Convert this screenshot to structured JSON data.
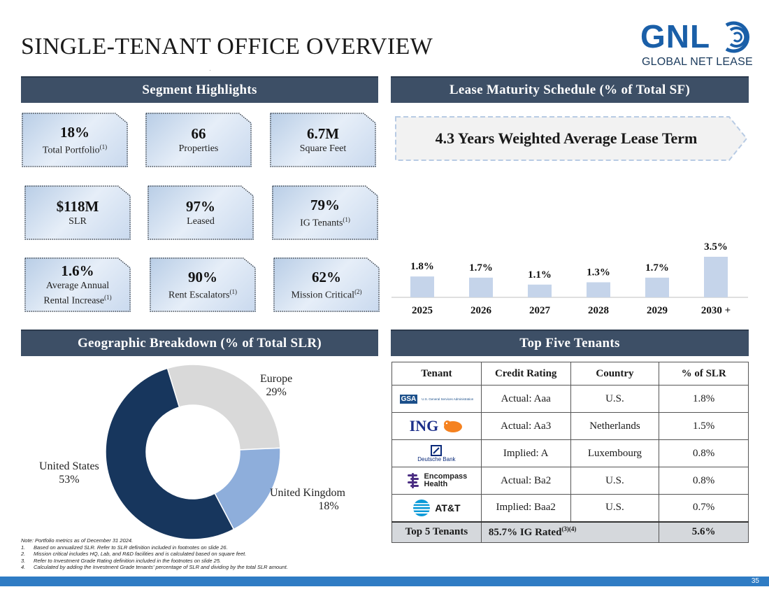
{
  "page": {
    "title": "SINGLE-TENANT OFFICE OVERVIEW",
    "page_number": "35"
  },
  "logo": {
    "mark": "GNL",
    "subtitle": "GLOBAL NET LEASE"
  },
  "segment": {
    "header": "Segment Highlights",
    "tiles": [
      {
        "value": "18%",
        "label": "Total Portfolio",
        "sup": "(1)"
      },
      {
        "value": "66",
        "label": "Properties",
        "sup": ""
      },
      {
        "value": "6.7M",
        "label": "Square Feet",
        "sup": ""
      },
      {
        "value": "$118M",
        "label": "SLR",
        "sup": ""
      },
      {
        "value": "97%",
        "label": "Leased",
        "sup": ""
      },
      {
        "value": "79%",
        "label": "IG Tenants",
        "sup": "(1)"
      },
      {
        "value": "1.6%",
        "label1": "Average Annual",
        "label2": "Rental Increase",
        "sup": "(1)"
      },
      {
        "value": "90%",
        "label": "Rent Escalators",
        "sup": "(1)"
      },
      {
        "value": "62%",
        "label": "Mission Critical",
        "sup": "(2)"
      }
    ]
  },
  "maturity": {
    "header": "Lease Maturity Schedule (% of Total SF)",
    "wale": "4.3 Years Weighted Average Lease Term"
  },
  "chart_data": [
    {
      "type": "bar",
      "title": "Lease Maturity Schedule (% of Total SF)",
      "categories": [
        "2025",
        "2026",
        "2027",
        "2028",
        "2029",
        "2030 +"
      ],
      "values": [
        1.8,
        1.7,
        1.1,
        1.3,
        1.7,
        3.5
      ],
      "value_labels": [
        "1.8%",
        "1.7%",
        "1.1%",
        "1.3%",
        "1.7%",
        "3.5%"
      ],
      "ylim": [
        0,
        3.5
      ],
      "color": "#c5d4ea"
    },
    {
      "type": "pie",
      "title": "Geographic Breakdown (% of Total SLR)",
      "labels": [
        "Europe",
        "United Kingdom",
        "United States"
      ],
      "values": [
        29,
        18,
        53
      ],
      "value_labels": [
        "29%",
        "18%",
        "53%"
      ],
      "colors": [
        "#d9d9d9",
        "#8eaedb",
        "#17365d"
      ]
    }
  ],
  "geo": {
    "header": "Geographic Breakdown (% of Total SLR)"
  },
  "tenants": {
    "header": "Top Five Tenants",
    "columns": [
      "Tenant",
      "Credit Rating",
      "Country",
      "% of SLR"
    ],
    "rows": [
      {
        "logo_text": "GSA",
        "logo_sub": "U.S. General Services Administration",
        "rating": "Actual: Aaa",
        "country": "U.S.",
        "pct": "1.8%"
      },
      {
        "logo_text": "ING",
        "rating": "Actual: Aa3",
        "country": "Netherlands",
        "pct": "1.5%"
      },
      {
        "logo_text": "Deutsche Bank",
        "rating": "Implied: A",
        "country": "Luxembourg",
        "pct": "0.8%"
      },
      {
        "logo_text": "Encompass",
        "logo_sub": "Health",
        "rating": "Actual: Ba2",
        "country": "U.S.",
        "pct": "0.8%"
      },
      {
        "logo_text": "AT&T",
        "rating": "Implied: Baa2",
        "country": "U.S.",
        "pct": "0.7%"
      }
    ],
    "total": {
      "label": "Top 5 Tenants",
      "ig": "85.7% IG Rated",
      "ig_sup": "(3)(4)",
      "pct": "5.6%"
    }
  },
  "notes": {
    "intro": "Note: Portfolio metrics as of December 31 2024.",
    "items": [
      {
        "num": "1.",
        "text": "Based on annualized SLR. Refer to SLR definition included in footnotes on slide 26."
      },
      {
        "num": "2.",
        "text": "Mission critical includes HQ, Lab, and R&D facilities and is calculated based on square feet."
      },
      {
        "num": "3.",
        "text": "Refer to Investment Grade Rating definition included in the footnotes on slide 25."
      },
      {
        "num": "4.",
        "text": "Calculated by adding the Investment Grade tenants' percentage of SLR and dividing by the total SLR amount."
      }
    ]
  }
}
